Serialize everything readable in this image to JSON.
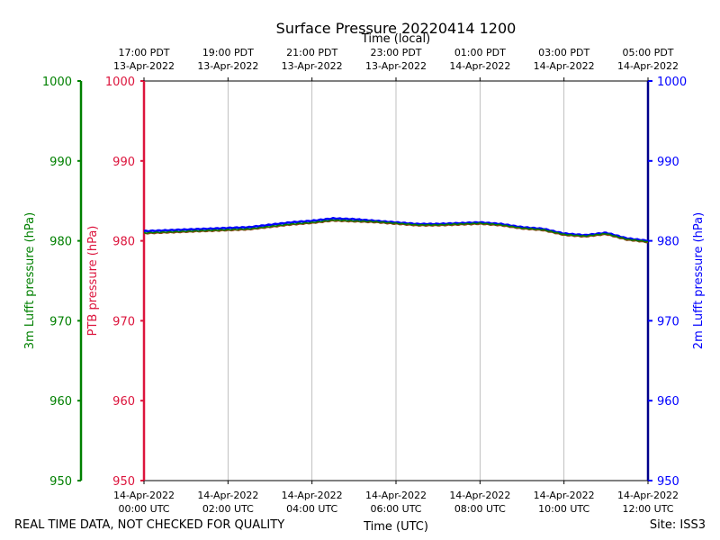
{
  "chart_data": {
    "type": "line",
    "title": "Surface Pressure 20220414 1200",
    "xlabel_bottom": "Time (UTC)",
    "xlabel_top": "Time (local)",
    "ylabel_left_outer": "3m Lufft pressure (hPa)",
    "ylabel_left_inner": "PTB pressure (hPa)",
    "ylabel_right": "2m Lufft pressure (hPa)",
    "ylim": [
      950,
      1000
    ],
    "yticks": [
      950,
      960,
      970,
      980,
      990,
      1000
    ],
    "xlim": [
      0,
      12
    ],
    "grid": "vertical",
    "x_ticks_bottom": [
      {
        "x": 0,
        "line1": "14-Apr-2022",
        "line2": "00:00 UTC"
      },
      {
        "x": 2,
        "line1": "14-Apr-2022",
        "line2": "02:00 UTC"
      },
      {
        "x": 4,
        "line1": "14-Apr-2022",
        "line2": "04:00 UTC"
      },
      {
        "x": 6,
        "line1": "14-Apr-2022",
        "line2": "06:00 UTC"
      },
      {
        "x": 8,
        "line1": "14-Apr-2022",
        "line2": "08:00 UTC"
      },
      {
        "x": 10,
        "line1": "14-Apr-2022",
        "line2": "10:00 UTC"
      },
      {
        "x": 12,
        "line1": "14-Apr-2022",
        "line2": "12:00 UTC"
      }
    ],
    "x_ticks_top": [
      {
        "x": 0,
        "line1": "17:00 PDT",
        "line2": "13-Apr-2022"
      },
      {
        "x": 2,
        "line1": "19:00 PDT",
        "line2": "13-Apr-2022"
      },
      {
        "x": 4,
        "line1": "21:00 PDT",
        "line2": "13-Apr-2022"
      },
      {
        "x": 6,
        "line1": "23:00 PDT",
        "line2": "13-Apr-2022"
      },
      {
        "x": 8,
        "line1": "01:00 PDT",
        "line2": "14-Apr-2022"
      },
      {
        "x": 10,
        "line1": "03:00 PDT",
        "line2": "14-Apr-2022"
      },
      {
        "x": 12,
        "line1": "05:00 PDT",
        "line2": "14-Apr-2022"
      }
    ],
    "x": [
      0,
      0.5,
      1,
      1.5,
      2,
      2.5,
      3,
      3.5,
      4,
      4.5,
      5,
      5.5,
      6,
      6.5,
      7,
      7.5,
      8,
      8.5,
      9,
      9.5,
      10,
      10.5,
      11,
      11.5,
      12
    ],
    "series": [
      {
        "name": "2m Lufft",
        "color": "#0000ff",
        "values": [
          981.2,
          981.3,
          981.4,
          981.5,
          981.6,
          981.7,
          982.0,
          982.3,
          982.5,
          982.8,
          982.7,
          982.5,
          982.3,
          982.1,
          982.1,
          982.2,
          982.3,
          982.1,
          981.7,
          981.5,
          980.9,
          980.7,
          981.0,
          980.3,
          980.0
        ]
      },
      {
        "name": "PTB",
        "color": "#8b4513",
        "values": [
          980.9,
          981.0,
          981.1,
          981.2,
          981.3,
          981.4,
          981.7,
          982.0,
          982.2,
          982.5,
          982.4,
          982.3,
          982.1,
          981.9,
          981.9,
          982.0,
          982.1,
          981.9,
          981.5,
          981.3,
          980.7,
          980.5,
          980.8,
          980.1,
          979.8
        ]
      },
      {
        "name": "3m Lufft",
        "color": "#008000",
        "values": [
          981.0,
          981.1,
          981.2,
          981.3,
          981.4,
          981.5,
          981.8,
          982.1,
          982.3,
          982.6,
          982.5,
          982.4,
          982.2,
          982.0,
          982.0,
          982.1,
          982.2,
          982.0,
          981.6,
          981.4,
          980.8,
          980.6,
          980.9,
          980.2,
          979.9
        ]
      }
    ],
    "axis_colors": {
      "outer_left": "#008000",
      "inner_left": "#dc143c",
      "right": "#0000ff"
    }
  },
  "footer": {
    "left_note": "REAL TIME DATA, NOT CHECKED FOR QUALITY",
    "site": "Site: ISS3"
  }
}
